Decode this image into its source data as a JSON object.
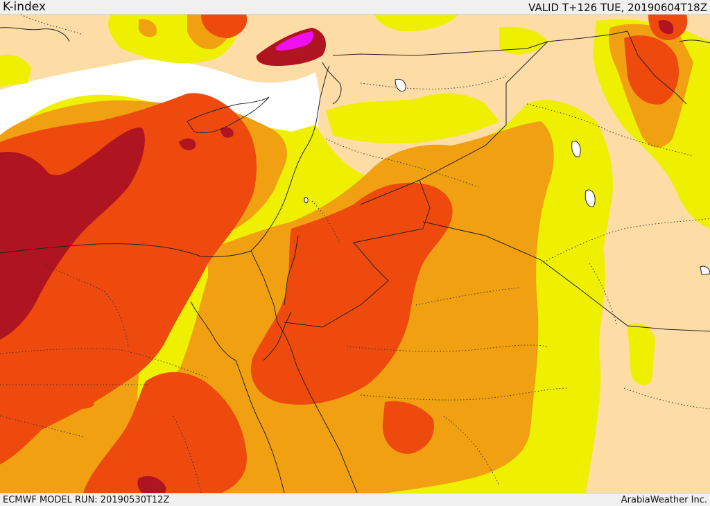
{
  "header": {
    "title": "K-index",
    "valid": "VALID T+126 TUE, 20190604T18Z"
  },
  "footer": {
    "model_run": "ECMWF MODEL RUN: 20190530T12Z",
    "credit": "ArabiaWeather Inc."
  },
  "map": {
    "colors": {
      "sea": "#ffffff",
      "low": "#fddca6",
      "yellow": "#eef000",
      "orange": "#f0a010",
      "red_orange": "#ee4a0e",
      "dark_red": "#b01420",
      "magenta": "#ee10f0",
      "border": "#222222"
    }
  }
}
